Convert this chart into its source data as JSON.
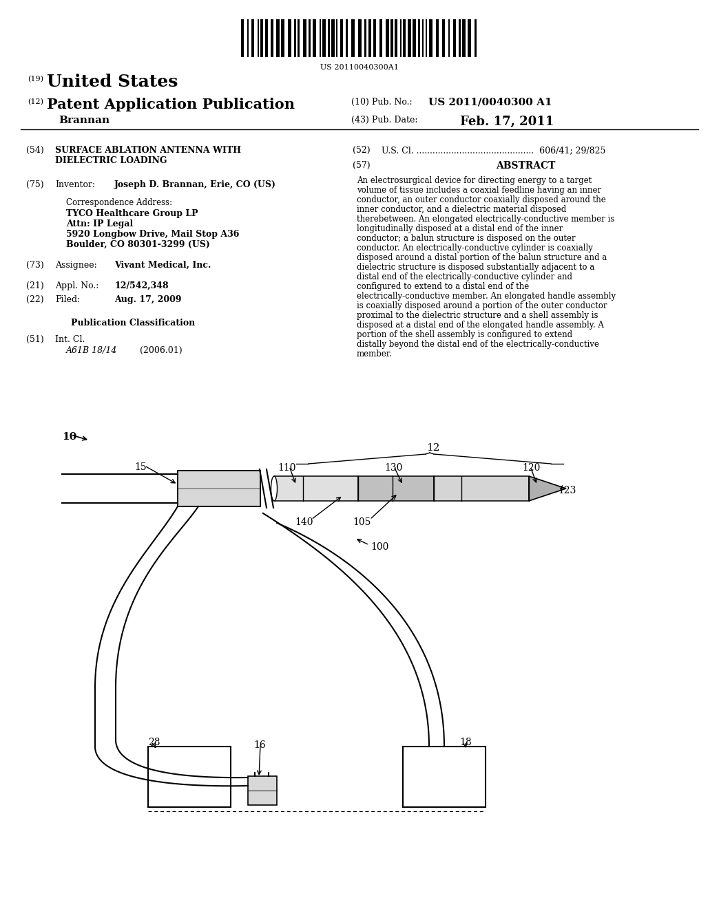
{
  "background_color": "#ffffff",
  "barcode_text": "US 20110040300A1",
  "title_19": "(19)",
  "title_19_text": "United States",
  "title_12": "(12)",
  "title_12_text": "Patent Application Publication",
  "pub_no_label": "(10) Pub. No.:",
  "pub_no_value": "US 2011/0040300 A1",
  "inventor_name": "Brannan",
  "pub_date_label": "(43) Pub. Date:",
  "pub_date_value": "Feb. 17, 2011",
  "field54_label": "(54)",
  "field52_label": "(52)",
  "field52_text": "U.S. Cl. ............................................  606/41; 29/825",
  "field57_label": "(57)",
  "field57_title": "ABSTRACT",
  "abstract_text": "An electrosurgical device for directing energy to a target volume of tissue includes a coaxial feedline having an inner conductor, an outer conductor coaxially disposed around the inner conductor, and a dielectric material disposed therebetween. An elongated electrically-conductive member is longitudinally disposed at a distal end of the inner conductor; a balun structure is disposed on the outer conductor. An electrically-conductive cylinder is coaxially disposed around a distal portion of the balun structure and a dielectric structure is disposed substantially adjacent to a distal end of the electrically-conductive cylinder and configured to extend to a distal end of the electrically-conductive member. An elongated handle assembly is coaxially disposed around a portion of the outer conductor proximal to the dielectric structure and a shell assembly is disposed at a distal end of the elongated handle assembly. A portion of the shell assembly is configured to extend distally beyond the distal end of the electrically-conductive member.",
  "field75_label": "(75)",
  "field75_field": "Inventor:",
  "field75_value": "Joseph D. Brannan, Erie, CO (US)",
  "corr_address_label": "Correspondence Address:",
  "corr_line1": "TYCO Healthcare Group LP",
  "corr_line2": "Attn: IP Legal",
  "corr_line3": "5920 Longbow Drive, Mail Stop A36",
  "corr_line4": "Boulder, CO 80301-3299 (US)",
  "field73_label": "(73)",
  "field73_field": "Assignee:",
  "field73_value": "Vivant Medical, Inc.",
  "field21_label": "(21)",
  "field21_field": "Appl. No.:",
  "field21_value": "12/542,348",
  "field22_label": "(22)",
  "field22_field": "Filed:",
  "field22_value": "Aug. 17, 2009",
  "pub_class_title": "Publication Classification",
  "field51_label": "(51)",
  "field51_field": "Int. Cl.",
  "field51_subfield": "A61B 18/14",
  "field51_date": "(2006.01)"
}
